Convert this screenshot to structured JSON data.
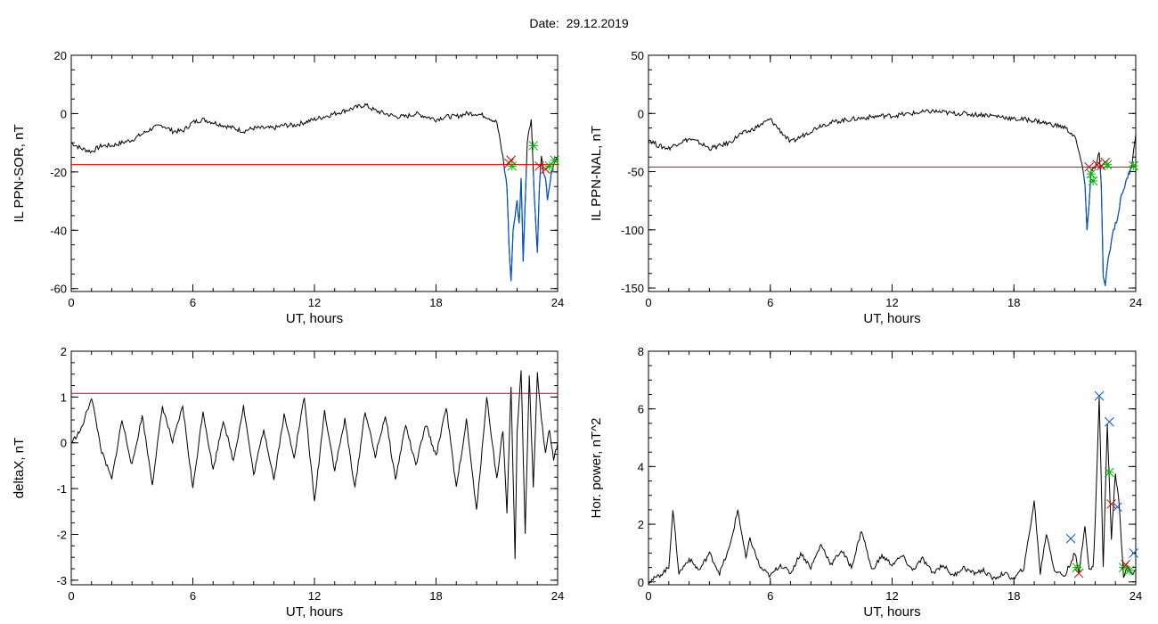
{
  "header": {
    "date_label": "Date:",
    "date_value": "29.12.2019"
  },
  "colors": {
    "trace": "#000000",
    "threshold": "#e00000",
    "blue": "#0055cc",
    "green": "#00b000",
    "red": "#cc0000"
  },
  "chart_data": [
    {
      "id": "ppn-sor",
      "type": "line",
      "xlabel": "UT, hours",
      "ylabel": "IL PPN-SOR, nT",
      "xlim": [
        0,
        24
      ],
      "ylim": [
        -61,
        20
      ],
      "xticks": [
        0,
        6,
        12,
        18,
        24
      ],
      "yticks": [
        -60,
        -40,
        -20,
        0,
        20
      ],
      "threshold": -17.5,
      "series": [
        {
          "x": [
            0,
            0.5,
            1,
            1.5,
            2,
            2.5,
            3,
            3.5,
            4,
            4.5,
            5,
            5.5,
            6,
            6.5,
            7,
            7.5,
            8,
            8.5,
            9,
            9.5,
            10,
            10.5,
            11,
            11.5,
            12,
            12.5,
            13,
            13.5,
            14,
            14.5,
            15,
            15.5,
            16,
            16.5,
            17,
            17.5,
            18,
            18.5,
            19,
            19.5,
            20,
            20.5,
            21,
            21.3,
            21.5,
            21.6,
            21.7,
            21.8,
            21.9,
            22,
            22.1,
            22.2,
            22.3,
            22.4,
            22.5,
            22.6,
            22.7,
            22.8,
            22.9,
            23,
            23.1,
            23.2,
            23.3,
            23.4,
            23.5,
            23.6,
            23.7,
            23.8,
            23.9,
            24
          ],
          "y": [
            -10,
            -12,
            -13,
            -11,
            -11,
            -10,
            -9,
            -7,
            -5,
            -4,
            -6,
            -6,
            -3,
            -2,
            -3,
            -4,
            -5,
            -6,
            -5,
            -5,
            -5,
            -4,
            -4,
            -3,
            -2,
            -1,
            0,
            1,
            2,
            3,
            1,
            0,
            -1,
            -1,
            0,
            -1,
            -2,
            -1,
            -1,
            0,
            0,
            -1,
            -3,
            -15,
            -25,
            -45,
            -58,
            -40,
            -35,
            -30,
            -38,
            -22,
            -50,
            -30,
            -10,
            -5,
            -2,
            -20,
            -35,
            -48,
            -25,
            -15,
            -20,
            -22,
            -30,
            -25,
            -20,
            -18,
            -16,
            -15
          ]
        }
      ],
      "markers": [
        {
          "x": 21.6,
          "y": -17,
          "color": "red"
        },
        {
          "x": 21.7,
          "y": -16,
          "color": "red"
        },
        {
          "x": 21.75,
          "y": -18,
          "color": "green"
        },
        {
          "x": 22.8,
          "y": -11,
          "color": "green"
        },
        {
          "x": 23.1,
          "y": -18,
          "color": "red"
        },
        {
          "x": 23.4,
          "y": -19,
          "color": "red"
        },
        {
          "x": 23.6,
          "y": -18,
          "color": "green"
        },
        {
          "x": 23.85,
          "y": -16,
          "color": "green"
        }
      ]
    },
    {
      "id": "ppn-nal",
      "type": "line",
      "xlabel": "UT, hours",
      "ylabel": "IL PPN-NAL, nT",
      "xlim": [
        0,
        24
      ],
      "ylim": [
        -153,
        50
      ],
      "xticks": [
        0,
        6,
        12,
        18,
        24
      ],
      "yticks": [
        -150,
        -100,
        -50,
        0,
        50
      ],
      "threshold": -46,
      "series": [
        {
          "x": [
            0,
            0.5,
            1,
            1.5,
            2,
            2.5,
            3,
            3.5,
            4,
            4.5,
            5,
            5.5,
            6,
            6.5,
            7,
            7.5,
            8,
            8.5,
            9,
            9.5,
            10,
            10.5,
            11,
            11.5,
            12,
            12.5,
            13,
            13.5,
            14,
            14.5,
            15,
            15.5,
            16,
            16.5,
            17,
            17.5,
            18,
            18.5,
            19,
            19.5,
            20,
            20.5,
            21,
            21.3,
            21.5,
            21.6,
            21.7,
            21.8,
            21.9,
            22,
            22.1,
            22.2,
            22.3,
            22.4,
            22.5,
            22.6,
            22.7,
            22.8,
            22.9,
            23,
            23.1,
            23.2,
            23.3,
            23.4,
            23.5,
            23.6,
            23.7,
            23.8,
            23.9,
            24
          ],
          "y": [
            -22,
            -28,
            -30,
            -25,
            -22,
            -25,
            -30,
            -28,
            -25,
            -18,
            -15,
            -10,
            -5,
            -15,
            -25,
            -20,
            -15,
            -10,
            -8,
            -6,
            -5,
            -4,
            -3,
            -2,
            -2,
            -1,
            0,
            1,
            2,
            1,
            0,
            0,
            -1,
            -1,
            -2,
            -3,
            -5,
            -5,
            -6,
            -8,
            -10,
            -12,
            -20,
            -40,
            -60,
            -100,
            -80,
            -50,
            -45,
            -48,
            -40,
            -35,
            -60,
            -140,
            -150,
            -130,
            -120,
            -110,
            -100,
            -95,
            -90,
            -80,
            -70,
            -65,
            -60,
            -55,
            -50,
            -45,
            -30,
            -18
          ]
        }
      ],
      "markers": [
        {
          "x": 21.7,
          "y": -46,
          "color": "red"
        },
        {
          "x": 21.8,
          "y": -52,
          "color": "green"
        },
        {
          "x": 21.9,
          "y": -58,
          "color": "green"
        },
        {
          "x": 22.1,
          "y": -44,
          "color": "red"
        },
        {
          "x": 22.3,
          "y": -45,
          "color": "red"
        },
        {
          "x": 22.5,
          "y": -42,
          "color": "red"
        },
        {
          "x": 22.6,
          "y": -44,
          "color": "green"
        },
        {
          "x": 23.9,
          "y": -45,
          "color": "green"
        }
      ]
    },
    {
      "id": "deltax",
      "type": "line",
      "xlabel": "UT, hours",
      "ylabel": "deltaX, nT",
      "xlim": [
        0,
        24
      ],
      "ylim": [
        -3.1,
        2
      ],
      "xticks": [
        0,
        6,
        12,
        18,
        24
      ],
      "yticks": [
        -3,
        -2,
        -1,
        0,
        1,
        2
      ],
      "threshold": 1.08,
      "series": [
        {
          "x": [
            0,
            0.5,
            1,
            1.5,
            2,
            2.5,
            3,
            3.5,
            4,
            4.5,
            5,
            5.5,
            6,
            6.5,
            7,
            7.5,
            8,
            8.5,
            9,
            9.5,
            10,
            10.5,
            11,
            11.5,
            12,
            12.5,
            13,
            13.5,
            14,
            14.5,
            15,
            15.5,
            16,
            16.5,
            17,
            17.5,
            18,
            18.5,
            19,
            19.5,
            20,
            20.5,
            21,
            21.3,
            21.5,
            21.7,
            21.9,
            22,
            22.2,
            22.4,
            22.6,
            22.8,
            23,
            23.2,
            23.4,
            23.6,
            23.8,
            24
          ],
          "y": [
            0,
            0.3,
            1,
            -0.2,
            -0.8,
            0.5,
            -0.5,
            0.6,
            -0.9,
            0.8,
            0,
            0.8,
            -1,
            0.7,
            -0.6,
            0.5,
            -0.4,
            0.8,
            -0.7,
            0.3,
            -0.8,
            0.6,
            -0.3,
            1,
            -1.3,
            0.7,
            -0.6,
            0.5,
            -1,
            0.7,
            -0.3,
            0.6,
            -0.8,
            0.4,
            -0.5,
            0.4,
            -0.3,
            0.8,
            -1,
            0.5,
            -1.5,
            1,
            -0.8,
            0.3,
            -1.5,
            1.2,
            -2.5,
            0.2,
            1.6,
            -2,
            1.5,
            -1,
            1.5,
            0.5,
            -0.2,
            0.3,
            -0.4,
            0
          ]
        }
      ],
      "markers": []
    },
    {
      "id": "hor-power",
      "type": "line",
      "xlabel": "UT, hours",
      "ylabel": "Hor. power, nT^2",
      "xlim": [
        0,
        24
      ],
      "ylim": [
        -0.1,
        8
      ],
      "xticks": [
        0,
        6,
        12,
        18,
        24
      ],
      "yticks": [
        0,
        2,
        4,
        6,
        8
      ],
      "threshold": null,
      "series": [
        {
          "x": [
            0,
            0.5,
            1,
            1.2,
            1.5,
            2,
            2.5,
            3,
            3.5,
            4,
            4.4,
            4.8,
            5,
            5.5,
            6,
            6.5,
            7,
            7.5,
            8,
            8.5,
            9,
            9.5,
            10,
            10.5,
            11,
            11.5,
            12,
            12.5,
            13,
            13.5,
            14,
            14.5,
            15,
            15.5,
            16,
            16.5,
            17,
            17.5,
            18,
            18.5,
            19,
            19.3,
            19.6,
            20,
            20.5,
            21,
            21.2,
            21.5,
            21.7,
            21.9,
            22,
            22.2,
            22.4,
            22.6,
            22.8,
            23,
            23.2,
            23.4,
            23.6,
            23.8,
            24
          ],
          "y": [
            0,
            0.2,
            0.5,
            2.5,
            0.3,
            0.8,
            0.4,
            1,
            0.3,
            1.2,
            2.5,
            0.8,
            1.5,
            0.5,
            0.2,
            0.6,
            0.3,
            1,
            0.5,
            1.3,
            0.6,
            1.1,
            0.5,
            1.8,
            0.4,
            0.9,
            0.6,
            0.9,
            0.4,
            0.8,
            0.3,
            0.6,
            0.2,
            0.5,
            0.3,
            0.4,
            0.1,
            0.3,
            0.1,
            0.5,
            2.8,
            0.3,
            1.7,
            0.4,
            0.2,
            1,
            0.3,
            2,
            0.4,
            0.5,
            2,
            6.4,
            0.5,
            5.5,
            1.5,
            3.8,
            2.6,
            0.2,
            0.5,
            0.3,
            0.4
          ]
        }
      ],
      "markers": [
        {
          "x": 20.8,
          "y": 1.5,
          "color": "blue"
        },
        {
          "x": 21.1,
          "y": 0.5,
          "color": "green"
        },
        {
          "x": 21.2,
          "y": 0.3,
          "color": "red"
        },
        {
          "x": 22.2,
          "y": 6.45,
          "color": "blue"
        },
        {
          "x": 22.7,
          "y": 5.55,
          "color": "blue"
        },
        {
          "x": 22.7,
          "y": 3.8,
          "color": "green"
        },
        {
          "x": 22.8,
          "y": 2.7,
          "color": "red"
        },
        {
          "x": 23.1,
          "y": 2.6,
          "color": "blue"
        },
        {
          "x": 23.4,
          "y": 0.5,
          "color": "green"
        },
        {
          "x": 23.5,
          "y": 0.6,
          "color": "red"
        },
        {
          "x": 23.7,
          "y": 0.4,
          "color": "green"
        },
        {
          "x": 23.9,
          "y": 1,
          "color": "blue"
        }
      ]
    }
  ]
}
